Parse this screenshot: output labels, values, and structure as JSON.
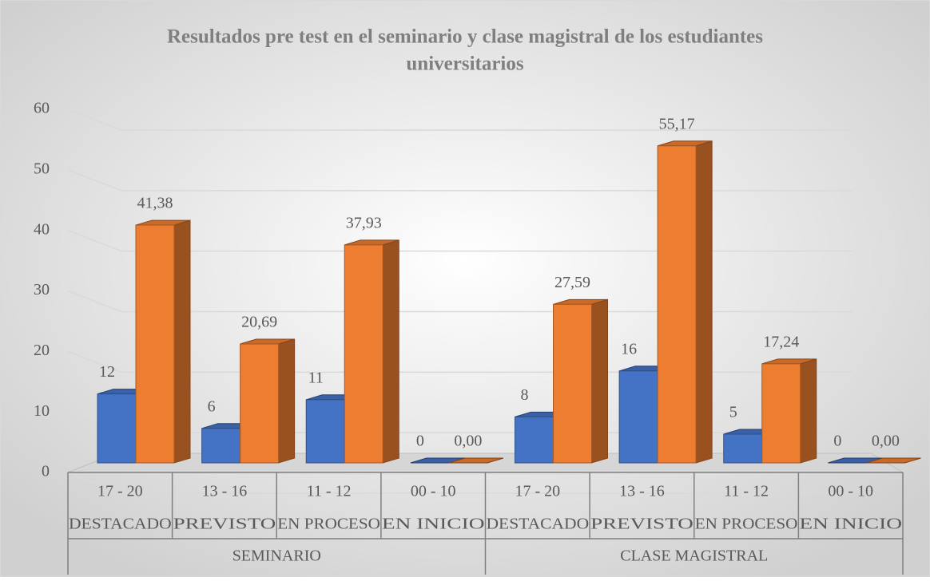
{
  "chart_data": {
    "type": "bar3d",
    "title": [
      "Resultados pre test en el seminario y clase magistral de los estudiantes",
      "universitarios"
    ],
    "categories": [
      "17 - 20",
      "13 - 16",
      "11 - 12",
      "00 - 10",
      "17 - 20",
      "13 - 16",
      "11 - 12",
      "00 - 10"
    ],
    "category_levels": [
      "DESTACADO",
      "PREVISTO",
      "EN PROCESO",
      "EN INICIO",
      "DESTACADO",
      "PREVISTO",
      "EN PROCESO",
      "EN INICIO"
    ],
    "groups": [
      "SEMINARIO",
      "CLASE MAGISTRAL"
    ],
    "series": [
      {
        "color": "#4472c4",
        "values": [
          12,
          6,
          11,
          0,
          8,
          16,
          5,
          0
        ]
      },
      {
        "color": "#ed7d31",
        "values": [
          41.38,
          20.69,
          37.93,
          0.0,
          27.59,
          55.17,
          17.24,
          0.0
        ],
        "value_labels": [
          "41,38",
          "20,69",
          "37,93",
          "0,00",
          "27,59",
          "55,17",
          "17,24",
          "0,00"
        ]
      }
    ],
    "ylim": [
      0,
      60
    ],
    "yticks": [
      0,
      10,
      20,
      30,
      40,
      50,
      60
    ],
    "grid": true
  }
}
